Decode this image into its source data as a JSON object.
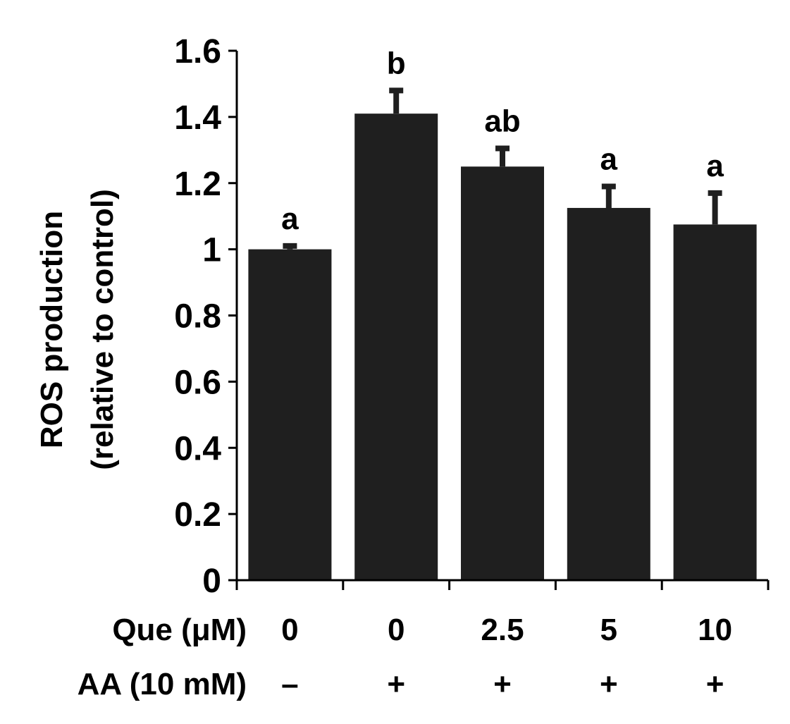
{
  "chart_data": {
    "type": "bar",
    "title": "",
    "ylabel_lines": [
      "ROS production",
      "(relative to control)"
    ],
    "xlabel": "",
    "ylim": [
      0,
      1.6
    ],
    "ytick_values": [
      0,
      0.2,
      0.4,
      0.6,
      0.8,
      1,
      1.2,
      1.4,
      1.6
    ],
    "ytick_labels": [
      "0",
      "0.2",
      "0.4",
      "0.6",
      "0.8",
      "1",
      "1.2",
      "1.4",
      "1.6"
    ],
    "grid": false,
    "legend": "none",
    "bar_color": "#1f1f1f",
    "values": [
      1.0,
      1.41,
      1.25,
      1.125,
      1.075
    ],
    "errors": [
      0.01,
      0.07,
      0.055,
      0.065,
      0.095
    ],
    "significance": [
      "a",
      "b",
      "ab",
      "a",
      "a"
    ],
    "conditions": [
      {
        "label": "Que (μM)",
        "values": [
          "0",
          "0",
          "2.5",
          "5",
          "10"
        ]
      },
      {
        "label": "AA (10 mM)",
        "values": [
          "–",
          "+",
          "+",
          "+",
          "+"
        ]
      }
    ]
  }
}
